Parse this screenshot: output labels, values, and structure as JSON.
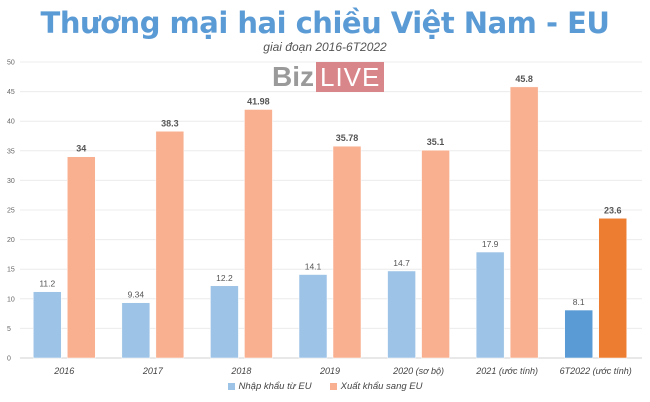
{
  "chart_data": {
    "type": "bar",
    "title": "Thương mại hai chiều Việt Nam - EU",
    "subtitle": "giai đoạn 2016-6T2022",
    "categories": [
      "2016",
      "2017",
      "2018",
      "2019",
      "2020 (sơ bộ)",
      "2021 (ước tính)",
      "6T2022 (ước tính)"
    ],
    "series": [
      {
        "name": "Nhập khẩu từ EU",
        "values": [
          11.2,
          9.34,
          12.2,
          14.1,
          14.7,
          17.9,
          8.1
        ],
        "color": "#9dc3e6",
        "highlight_color": "#5b9bd5"
      },
      {
        "name": "Xuất khẩu sang EU",
        "values": [
          34,
          38.3,
          41.98,
          35.78,
          35.1,
          45.8,
          23.6
        ],
        "color": "#f8b090",
        "highlight_color": "#ed7d31"
      }
    ],
    "yticks": [
      0,
      5,
      10,
      15,
      20,
      25,
      30,
      35,
      40,
      45,
      50
    ],
    "ylim": [
      0,
      50
    ],
    "grid": true,
    "legend_position": "bottom"
  },
  "watermark": {
    "part1": "Biz",
    "part2": "LIVE"
  }
}
